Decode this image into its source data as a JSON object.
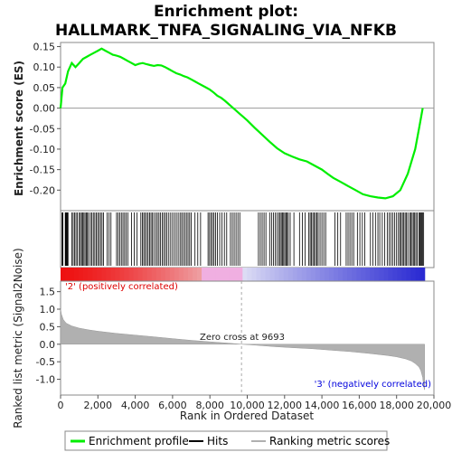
{
  "title_line1": "Enrichment plot:",
  "title_line2": "HALLMARK_TNFA_SIGNALING_VIA_NFKB",
  "es_ylabel": "Enrichment score (ES)",
  "metric_ylabel": "Ranked list metric (Signal2Noise)",
  "xlabel": "Rank in Ordered Dataset",
  "positive_label": "'2' (positively correlated)",
  "negative_label": "'3' (negatively correlated)",
  "zero_cross_label": "Zero cross at 9693",
  "legend": {
    "enrichment": "Enrichment profile",
    "hits": "Hits",
    "ranking": "Ranking metric scores"
  },
  "colors": {
    "enrichment": "#00ee00",
    "hits": "#000000",
    "metric_fill": "#b0b0b0",
    "positive_text": "#dd0000",
    "negative_text": "#0000dd",
    "positive_band": "#ee1111",
    "negative_band": "#3333dd"
  },
  "chart_data": {
    "type": "line",
    "total_genes": 19500,
    "zero_cross": 9693,
    "x_ticks": [
      "0",
      "2,000",
      "4,000",
      "6,000",
      "8,000",
      "10,000",
      "12,000",
      "14,000",
      "16,000",
      "18,000",
      "20,000"
    ],
    "x_tick_values": [
      0,
      2000,
      4000,
      6000,
      8000,
      10000,
      12000,
      14000,
      16000,
      18000,
      20000
    ],
    "x_range": [
      0,
      20000
    ],
    "es": {
      "ylim": [
        -0.25,
        0.16
      ],
      "y_ticks": [
        "0.15",
        "0.10",
        "0.05",
        "0.00",
        "-0.05",
        "-0.10",
        "-0.15",
        "-0.20"
      ],
      "y_tick_values": [
        0.15,
        0.1,
        0.05,
        0.0,
        -0.05,
        -0.1,
        -0.15,
        -0.2
      ],
      "x": [
        0,
        100,
        250,
        400,
        600,
        800,
        1000,
        1200,
        1400,
        1600,
        1800,
        2000,
        2200,
        2400,
        2600,
        2800,
        3000,
        3200,
        3400,
        3600,
        3800,
        4000,
        4200,
        4400,
        4600,
        4800,
        5000,
        5200,
        5400,
        5600,
        5800,
        6000,
        6200,
        6400,
        6600,
        6800,
        7000,
        7200,
        7400,
        7600,
        7800,
        8000,
        8200,
        8400,
        8600,
        8800,
        9000,
        9200,
        9400,
        9600,
        9800,
        10000,
        10400,
        10800,
        11200,
        11600,
        12000,
        12400,
        12800,
        13200,
        13600,
        13800,
        14000,
        14300,
        14600,
        15000,
        15400,
        15800,
        16200,
        16600,
        17000,
        17400,
        17800,
        18200,
        18400,
        18600,
        18800,
        19000,
        19200,
        19400
      ],
      "y": [
        0.0,
        0.05,
        0.06,
        0.09,
        0.11,
        0.1,
        0.11,
        0.12,
        0.125,
        0.13,
        0.135,
        0.14,
        0.145,
        0.14,
        0.135,
        0.13,
        0.128,
        0.125,
        0.12,
        0.115,
        0.11,
        0.105,
        0.108,
        0.11,
        0.107,
        0.105,
        0.103,
        0.105,
        0.104,
        0.1,
        0.095,
        0.09,
        0.085,
        0.082,
        0.078,
        0.075,
        0.07,
        0.065,
        0.06,
        0.055,
        0.05,
        0.045,
        0.038,
        0.03,
        0.025,
        0.018,
        0.01,
        0.002,
        -0.006,
        -0.014,
        -0.022,
        -0.03,
        -0.048,
        -0.065,
        -0.082,
        -0.098,
        -0.11,
        -0.118,
        -0.125,
        -0.13,
        -0.14,
        -0.145,
        -0.15,
        -0.16,
        -0.17,
        -0.18,
        -0.19,
        -0.2,
        -0.21,
        -0.215,
        -0.218,
        -0.22,
        -0.215,
        -0.2,
        -0.18,
        -0.16,
        -0.13,
        -0.1,
        -0.05,
        0.0
      ]
    },
    "hits": {
      "description": "gene set member positions",
      "clusters": [
        [
          80,
          120,
          8
        ],
        [
          250,
          400,
          6
        ],
        [
          600,
          900,
          5
        ],
        [
          1000,
          1500,
          9
        ],
        [
          1600,
          2300,
          10
        ],
        [
          2500,
          2700,
          3
        ],
        [
          3000,
          3600,
          8
        ],
        [
          3800,
          4100,
          3
        ],
        [
          4300,
          5000,
          10
        ],
        [
          5100,
          5700,
          8
        ],
        [
          5800,
          6300,
          6
        ],
        [
          6400,
          7000,
          8
        ],
        [
          7200,
          7500,
          3
        ],
        [
          7900,
          8300,
          6
        ],
        [
          8400,
          8900,
          5
        ],
        [
          9100,
          9600,
          6
        ],
        [
          10600,
          11000,
          5
        ],
        [
          11200,
          11600,
          5
        ],
        [
          11700,
          12200,
          9
        ],
        [
          12300,
          12500,
          2
        ],
        [
          12800,
          13100,
          3
        ],
        [
          13300,
          13800,
          8
        ],
        [
          13900,
          14200,
          4
        ],
        [
          14700,
          15000,
          3
        ],
        [
          15300,
          15700,
          5
        ],
        [
          15900,
          16300,
          4
        ],
        [
          16600,
          17000,
          4
        ],
        [
          17100,
          17500,
          4
        ],
        [
          17600,
          18000,
          5
        ],
        [
          18100,
          18600,
          8
        ],
        [
          18700,
          19100,
          7
        ],
        [
          19200,
          19450,
          6
        ]
      ]
    },
    "metric": {
      "ylim": [
        -1.45,
        1.8
      ],
      "y_ticks": [
        "1.5",
        "1.0",
        "0.5",
        "0.0",
        "-0.5",
        "-1.0"
      ],
      "y_tick_values": [
        1.5,
        1.0,
        0.5,
        0.0,
        -0.5,
        -1.0
      ],
      "x": [
        0,
        50,
        150,
        300,
        600,
        1000,
        1500,
        2000,
        3000,
        4000,
        5000,
        6000,
        7000,
        8000,
        9000,
        9693,
        10500,
        11500,
        12500,
        13500,
        14500,
        15500,
        16500,
        17500,
        18000,
        18500,
        18800,
        19000,
        19200,
        19300,
        19400,
        19450,
        19500
      ],
      "y": [
        1.0,
        0.85,
        0.7,
        0.6,
        0.52,
        0.46,
        0.41,
        0.37,
        0.31,
        0.26,
        0.21,
        0.16,
        0.11,
        0.07,
        0.03,
        0.0,
        -0.03,
        -0.07,
        -0.1,
        -0.13,
        -0.17,
        -0.21,
        -0.26,
        -0.32,
        -0.36,
        -0.42,
        -0.48,
        -0.55,
        -0.65,
        -0.75,
        -0.95,
        -1.2,
        -1.3
      ]
    }
  }
}
